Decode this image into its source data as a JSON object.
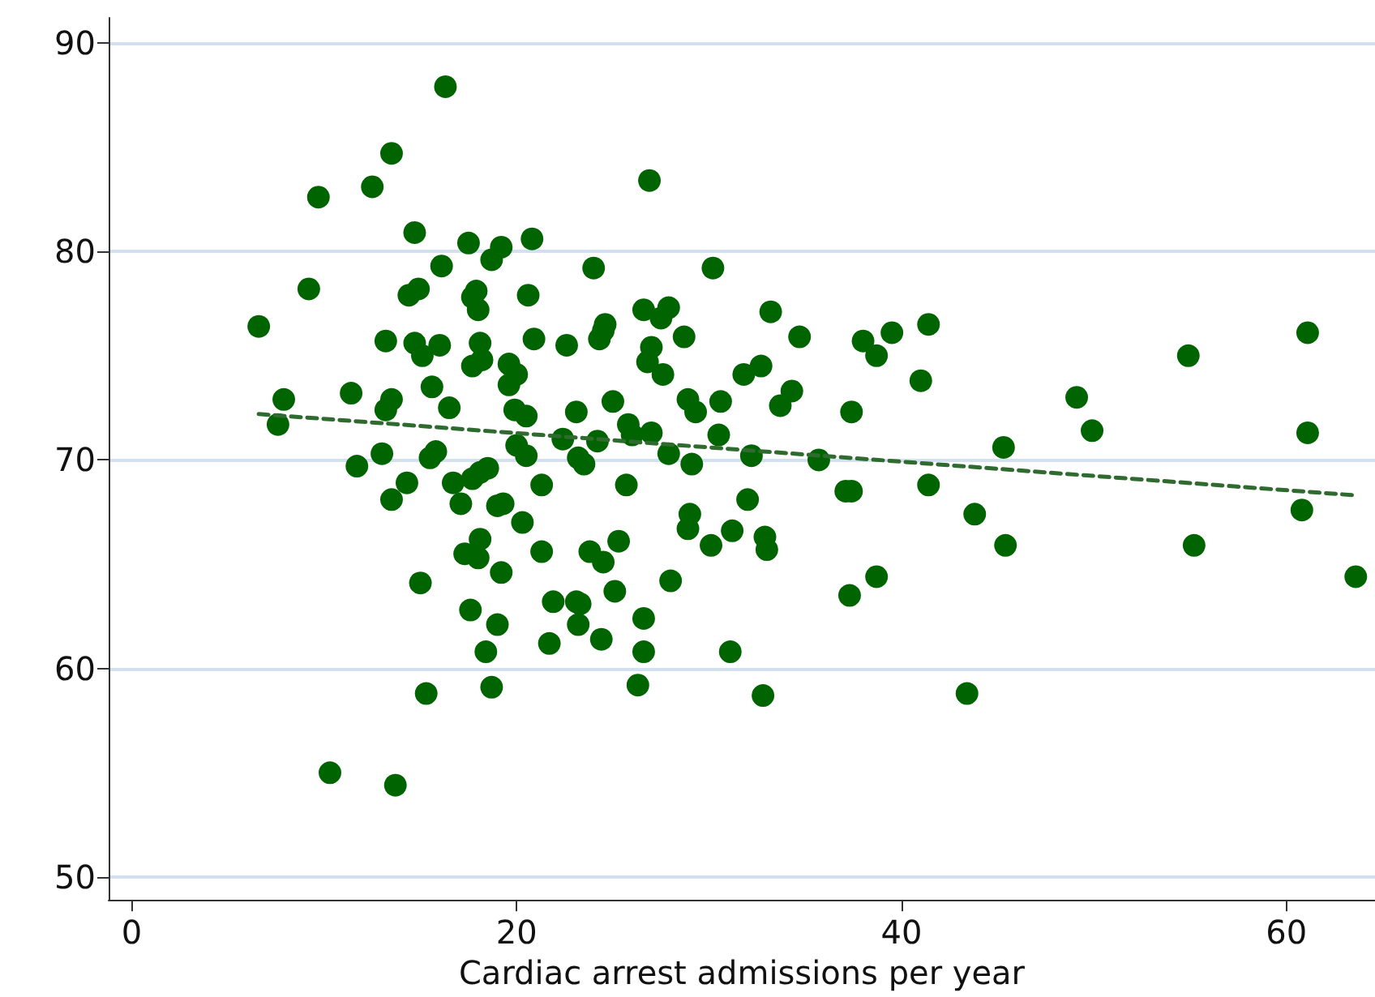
{
  "chart_data": {
    "type": "scatter",
    "xlabel": "Cardiac arrest admissions per year",
    "xlim": [
      -1.2,
      64.6
    ],
    "ylim": [
      48.9,
      91.2
    ],
    "xticks": [
      0,
      20,
      40,
      60
    ],
    "yticks": [
      50,
      60,
      70,
      80,
      90
    ],
    "grid": "y",
    "marker": "circle",
    "series": [
      {
        "color": "#006400",
        "x": [
          6.6,
          7.9,
          7.6,
          9.2,
          9.7,
          10.3,
          11.4,
          11.7,
          12.5,
          13.2,
          13.0,
          13.2,
          13.5,
          13.5,
          13.5,
          13.7,
          14.3,
          14.7,
          14.4,
          14.9,
          14.7,
          15.1,
          15.0,
          15.3,
          15.6,
          15.5,
          15.8,
          16.0,
          16.1,
          16.3,
          16.5,
          16.7,
          17.1,
          17.3,
          17.5,
          17.7,
          17.9,
          18.0,
          17.7,
          18.1,
          18.2,
          17.7,
          18.1,
          18.5,
          17.6,
          18.0,
          18.1,
          18.4,
          18.7,
          19.0,
          18.7,
          19.2,
          19.2,
          19.0,
          19.3,
          19.6,
          20.0,
          19.6,
          19.9,
          20.5,
          20.0,
          20.5,
          20.3,
          20.6,
          20.8,
          20.9,
          21.3,
          21.3,
          21.9,
          21.7,
          22.4,
          22.6,
          23.1,
          23.2,
          23.5,
          23.1,
          23.3,
          23.2,
          23.8,
          24.0,
          24.3,
          24.5,
          24.6,
          24.2,
          24.5,
          24.4,
          25.0,
          25.1,
          25.3,
          25.7,
          25.8,
          26.0,
          26.3,
          26.6,
          26.6,
          26.6,
          26.8,
          26.9,
          27.0,
          27.0,
          27.5,
          27.9,
          27.6,
          27.9,
          28.0,
          28.7,
          28.9,
          29.3,
          29.1,
          29.0,
          28.9,
          30.2,
          30.1,
          30.5,
          30.6,
          31.2,
          31.1,
          31.8,
          32.0,
          32.2,
          32.7,
          32.9,
          33.0,
          32.8,
          33.2,
          33.7,
          34.3,
          34.7,
          35.7,
          37.1,
          37.4,
          37.4,
          37.3,
          38.0,
          38.7,
          38.7,
          39.5,
          41.0,
          41.4,
          41.4,
          43.4,
          43.8,
          45.3,
          45.4,
          49.1,
          49.9,
          54.9,
          55.2,
          60.8,
          61.1,
          61.1,
          63.6
        ],
        "values": [
          76.4,
          72.9,
          71.7,
          78.2,
          82.6,
          55.0,
          73.2,
          69.7,
          83.1,
          75.7,
          70.3,
          72.4,
          72.9,
          84.7,
          68.1,
          54.4,
          68.9,
          80.9,
          77.9,
          78.2,
          75.6,
          75.0,
          64.1,
          58.8,
          73.5,
          70.1,
          70.4,
          75.5,
          79.3,
          87.9,
          72.5,
          68.9,
          67.9,
          65.5,
          80.4,
          77.8,
          78.1,
          77.2,
          74.5,
          75.6,
          74.8,
          69.1,
          69.4,
          69.6,
          62.8,
          65.3,
          66.2,
          60.8,
          59.1,
          62.1,
          79.6,
          80.2,
          64.6,
          67.8,
          67.9,
          74.6,
          74.1,
          73.6,
          72.4,
          72.1,
          70.7,
          70.2,
          67.0,
          77.9,
          80.6,
          75.8,
          68.8,
          65.6,
          63.2,
          61.2,
          71.0,
          75.5,
          72.3,
          70.1,
          69.8,
          63.2,
          63.1,
          62.1,
          65.6,
          79.2,
          75.8,
          76.2,
          76.5,
          70.9,
          65.1,
          61.4,
          72.8,
          63.7,
          66.1,
          68.8,
          71.7,
          71.2,
          59.2,
          62.4,
          60.8,
          77.2,
          74.7,
          83.4,
          75.4,
          71.3,
          76.8,
          77.3,
          74.1,
          70.3,
          64.2,
          75.9,
          72.9,
          72.3,
          69.8,
          67.4,
          66.7,
          79.2,
          65.9,
          71.2,
          72.8,
          66.6,
          60.8,
          74.1,
          68.1,
          70.2,
          74.5,
          66.3,
          65.7,
          58.7,
          77.1,
          72.6,
          73.3,
          75.9,
          70.0,
          68.5,
          68.5,
          72.3,
          63.5,
          75.7,
          75.0,
          64.4,
          76.1,
          73.8,
          76.5,
          68.8,
          58.8,
          67.4,
          70.6,
          65.9,
          73.0,
          71.4,
          75.0,
          65.9,
          67.6,
          76.1,
          71.3,
          64.4
        ]
      },
      {
        "type": "line",
        "color": "#2f6b2f",
        "line_style": "dashed",
        "marker": "none",
        "x": [
          6.6,
          63.6
        ],
        "values": [
          72.2,
          68.3
        ]
      }
    ]
  }
}
